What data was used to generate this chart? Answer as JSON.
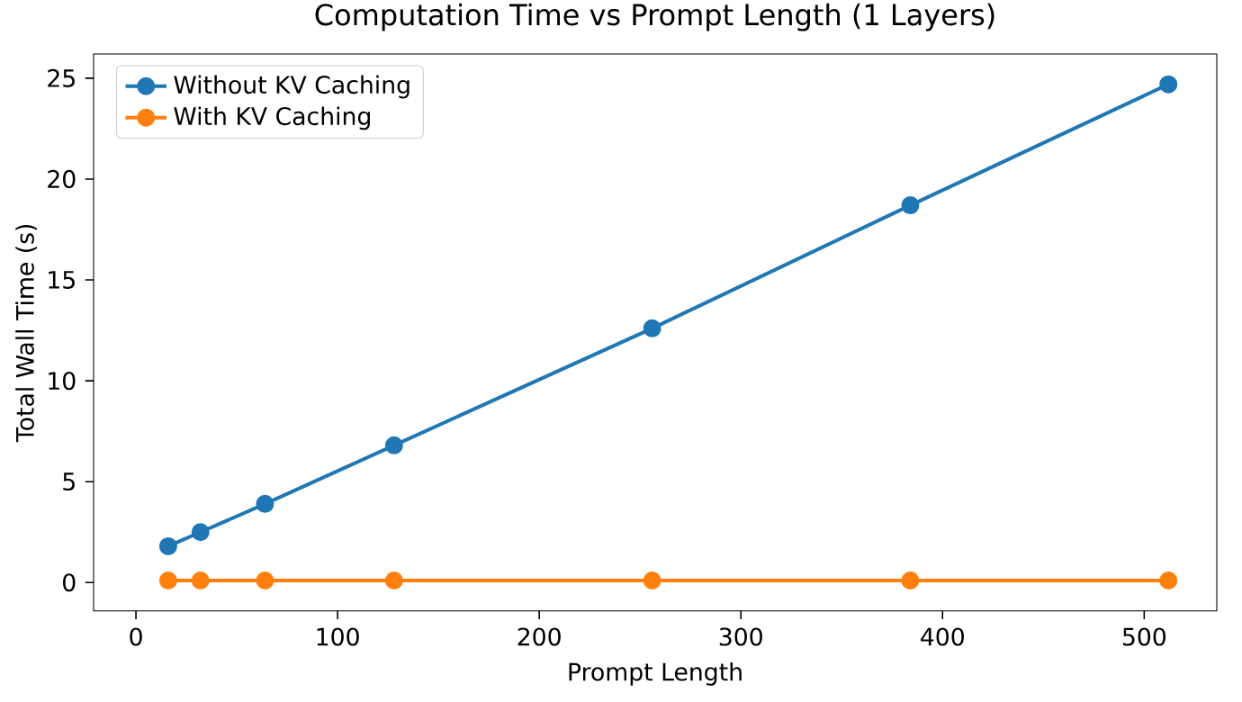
{
  "chart_data": {
    "type": "line",
    "title": "Computation Time vs Prompt Length (1 Layers)",
    "xlabel": "Prompt Length",
    "ylabel": "Total Wall Time (s)",
    "x": [
      16,
      32,
      64,
      128,
      256,
      384,
      512
    ],
    "series": [
      {
        "name": "Without KV Caching",
        "color": "#1f77b4",
        "values": [
          1.8,
          2.5,
          3.9,
          6.8,
          12.6,
          18.7,
          24.7
        ]
      },
      {
        "name": "With KV Caching",
        "color": "#ff7f0e",
        "values": [
          0.1,
          0.1,
          0.1,
          0.1,
          0.1,
          0.1,
          0.1
        ]
      }
    ],
    "xlim": [
      -21,
      536
    ],
    "ylim": [
      -1.4,
      26.2
    ],
    "xticks": [
      0,
      100,
      200,
      300,
      400,
      500
    ],
    "yticks": [
      0,
      5,
      10,
      15,
      20,
      25
    ],
    "legend": "top left",
    "marker": "circle",
    "line_style": "solid",
    "grid": false
  }
}
